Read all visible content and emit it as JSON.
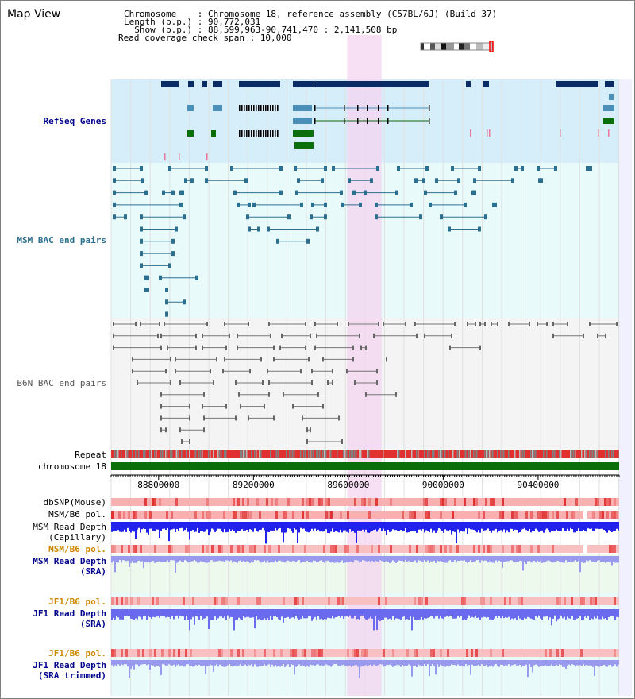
{
  "view": {
    "title": "Map View",
    "chromosome_line": "Chromosome    : Chromosome 18, reference assembly (C57BL/6J) (Build 37)",
    "length_line": "Length (b.p.) : 90,772,031",
    "show_line": "  Show (b.p.) : 88,599,963-90,741,470 : 2,141,508 bp",
    "coverage_line": "Read coverage check span : 10,000"
  },
  "colors": {
    "refseq_bg": "#d6eefa",
    "bac_bg": "#e8fafa",
    "b6n_bg": "#f4f4f4",
    "highlight": "#f4d4f0",
    "gene_dark": "#0a2b63",
    "gene_mid": "#4a8fb7",
    "gene_green": "#0a6e0a",
    "msm_pair": "#2d6f8f",
    "b6n_pair": "#777777",
    "chromosome_bar": "#0a6e0a",
    "depth_capillary": "#2222ee",
    "depth_sra": "#9999ee",
    "depth_jf1": "#6a6aee",
    "pol_label_orange": "#cc8800",
    "label_blue": "#00008b"
  },
  "tracks": {
    "refseq": "RefSeq Genes",
    "msm_bac": "MSM BAC end pairs",
    "b6n_bac": "B6N BAC end pairs",
    "repeat": "Repeat",
    "chromosome": "chromosome 18",
    "dbsnp": "dbSNP(Mouse)",
    "msm_b6_pol_1": "MSM/B6 pol.",
    "msm_read_depth_cap_1": "MSM Read Depth",
    "msm_read_depth_cap_2": "(Capillary)",
    "msm_b6_pol_2": "MSM/B6 pol.",
    "msm_read_depth_sra_1": "MSM Read Depth",
    "msm_read_depth_sra_2": "(SRA)",
    "jf1_b6_pol_1": "JF1/B6 pol.",
    "jf1_read_depth_sra_1": "JF1 Read Depth",
    "jf1_read_depth_sra_2": "(SRA)",
    "jf1_b6_pol_2": "JF1/B6 pol.",
    "jf1_read_depth_trim_1": "JF1 Read Depth",
    "jf1_read_depth_trim_2": "(SRA trimmed)"
  },
  "ruler": {
    "ticks": [
      "88800000",
      "89200000",
      "89600000",
      "90000000",
      "90400000"
    ],
    "range": [
      88599963,
      90741470
    ]
  },
  "highlight_region": [
    89595000,
    89740000
  ]
}
